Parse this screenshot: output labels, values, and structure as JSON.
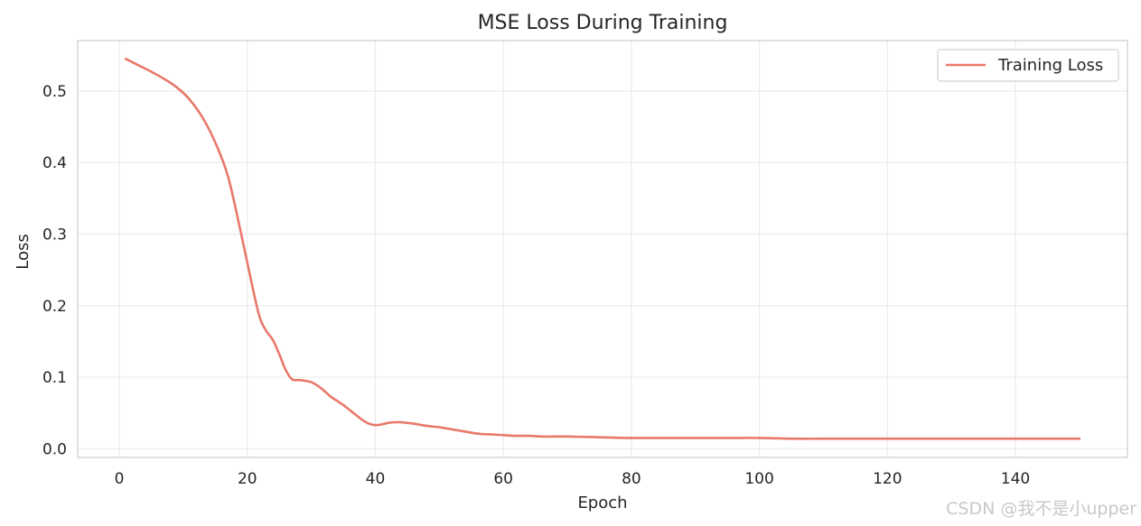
{
  "chart_data": {
    "type": "line",
    "title": "MSE Loss During Training",
    "xlabel": "Epoch",
    "ylabel": "Loss",
    "xlim": [
      -6.5,
      157.5
    ],
    "ylim": [
      -0.0122,
      0.5705
    ],
    "xticks": [
      0,
      20,
      40,
      60,
      80,
      100,
      120,
      140
    ],
    "yticks": [
      0.0,
      0.1,
      0.2,
      0.3,
      0.4,
      0.5
    ],
    "xtick_labels": [
      "0",
      "20",
      "40",
      "60",
      "80",
      "100",
      "120",
      "140"
    ],
    "ytick_labels": [
      "0.0",
      "0.1",
      "0.2",
      "0.3",
      "0.4",
      "0.5"
    ],
    "grid": true,
    "legend_position": "top-right",
    "series": [
      {
        "name": "Training Loss",
        "color": "#e8796b",
        "x": [
          1,
          3,
          5,
          7,
          9,
          11,
          13,
          15,
          17,
          19,
          21,
          22,
          23,
          24,
          25,
          26,
          27,
          28,
          29,
          30,
          31,
          32,
          33,
          34,
          35,
          36,
          37,
          38,
          39,
          40,
          41,
          42,
          43,
          44,
          45,
          46,
          48,
          50,
          52,
          54,
          56,
          58,
          60,
          62,
          64,
          66,
          68,
          70,
          75,
          80,
          85,
          90,
          95,
          100,
          105,
          110,
          115,
          120,
          125,
          130,
          135,
          140,
          145,
          150
        ],
        "y": [
          0.545,
          0.536,
          0.527,
          0.517,
          0.505,
          0.488,
          0.463,
          0.428,
          0.38,
          0.302,
          0.218,
          0.182,
          0.164,
          0.152,
          0.132,
          0.11,
          0.097,
          0.096,
          0.095,
          0.093,
          0.088,
          0.081,
          0.073,
          0.067,
          0.061,
          0.054,
          0.047,
          0.04,
          0.035,
          0.033,
          0.034,
          0.036,
          0.037,
          0.037,
          0.036,
          0.035,
          0.032,
          0.03,
          0.027,
          0.024,
          0.021,
          0.02,
          0.019,
          0.018,
          0.018,
          0.017,
          0.017,
          0.017,
          0.016,
          0.015,
          0.015,
          0.015,
          0.015,
          0.015,
          0.014,
          0.014,
          0.014,
          0.014,
          0.014,
          0.014,
          0.014,
          0.014,
          0.014,
          0.014
        ]
      }
    ]
  },
  "watermark": "CSDN @我不是小upper"
}
